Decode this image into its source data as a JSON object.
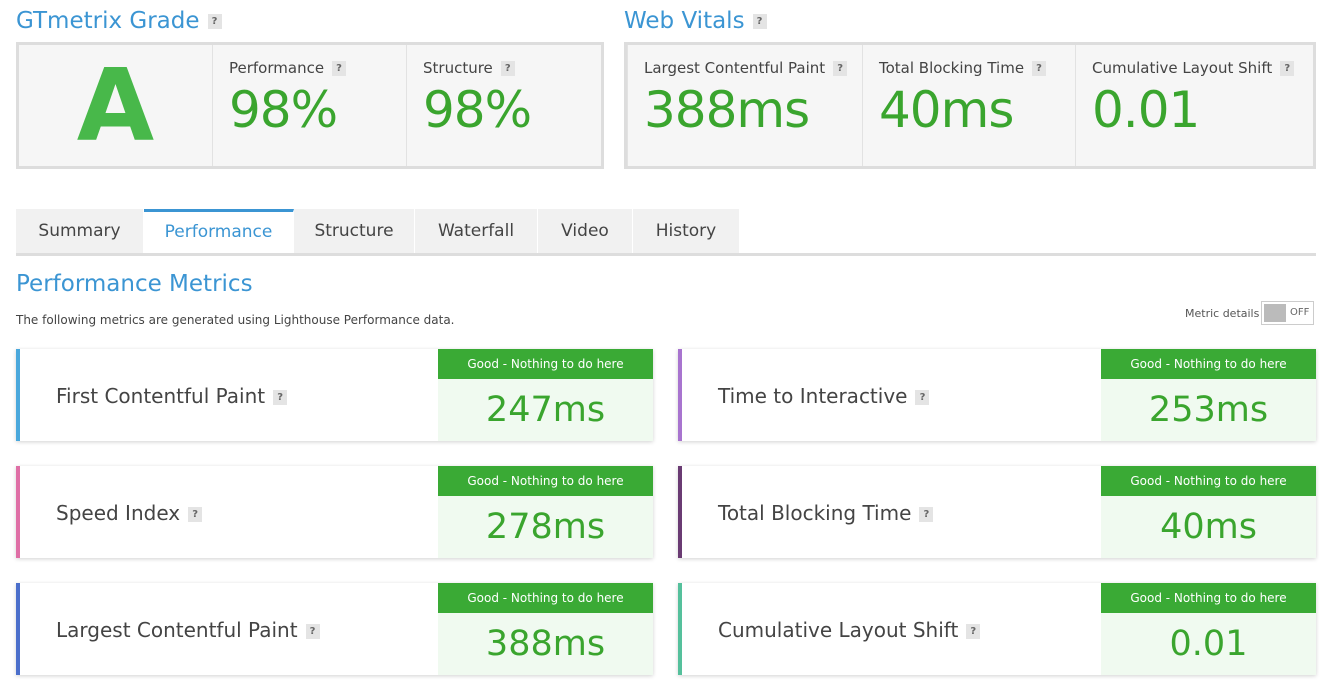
{
  "help_icon": "?",
  "grade": {
    "title": "GTmetrix Grade",
    "letter": "A",
    "metrics": [
      {
        "label": "Performance",
        "value": "98%"
      },
      {
        "label": "Structure",
        "value": "98%"
      }
    ]
  },
  "web_vitals": {
    "title": "Web Vitals",
    "metrics": [
      {
        "label": "Largest Contentful Paint",
        "value": "388ms"
      },
      {
        "label": "Total Blocking Time",
        "value": "40ms"
      },
      {
        "label": "Cumulative Layout Shift",
        "value": "0.01"
      }
    ]
  },
  "tabs": [
    {
      "label": "Summary",
      "active": false
    },
    {
      "label": "Performance",
      "active": true
    },
    {
      "label": "Structure",
      "active": false
    },
    {
      "label": "Waterfall",
      "active": false
    },
    {
      "label": "Video",
      "active": false
    },
    {
      "label": "History",
      "active": false
    }
  ],
  "section": {
    "title": "Performance Metrics",
    "description": "The following metrics are generated using Lighthouse Performance data.",
    "toggle_label": "Metric details",
    "toggle_state": "OFF"
  },
  "metrics": [
    {
      "label": "First Contentful Paint",
      "status": "Good - Nothing to do here",
      "value": "247ms",
      "color": "#4aa8dc"
    },
    {
      "label": "Time to Interactive",
      "status": "Good - Nothing to do here",
      "value": "253ms",
      "color": "#a874cf"
    },
    {
      "label": "Speed Index",
      "status": "Good - Nothing to do here",
      "value": "278ms",
      "color": "#df6fa6"
    },
    {
      "label": "Total Blocking Time",
      "status": "Good - Nothing to do here",
      "value": "40ms",
      "color": "#6a3b73"
    },
    {
      "label": "Largest Contentful Paint",
      "status": "Good - Nothing to do here",
      "value": "388ms",
      "color": "#4b6fcb"
    },
    {
      "label": "Cumulative Layout Shift",
      "status": "Good - Nothing to do here",
      "value": "0.01",
      "color": "#55c09c"
    }
  ]
}
